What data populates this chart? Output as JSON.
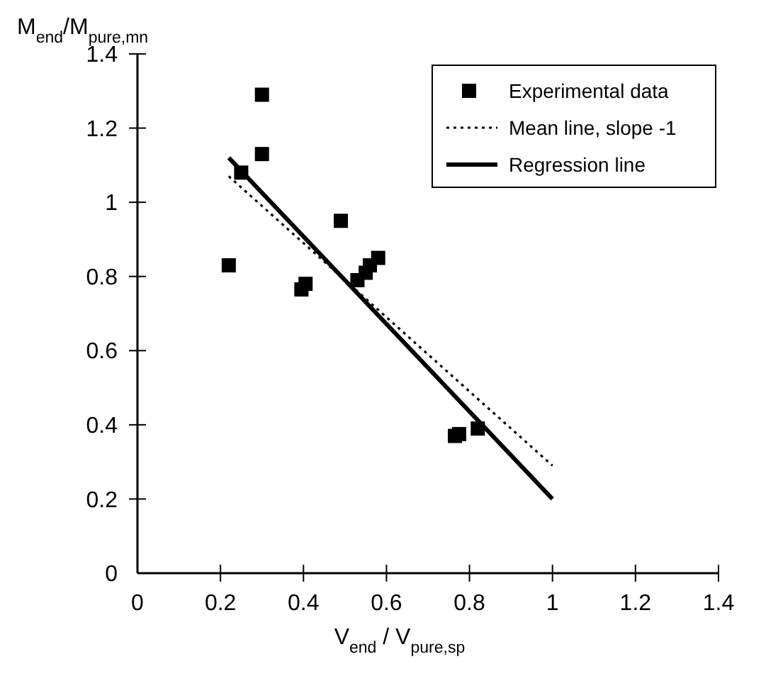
{
  "chart_data": {
    "type": "scatter",
    "xlabel": "V$_{end}$ / V$_{pure,sp}$",
    "ylabel": "M$_{end}$/M$_{pure,mn}$",
    "xlim": [
      0,
      1.4
    ],
    "xticks": [
      0,
      0.2,
      0.4,
      0.6,
      0.8,
      1,
      1.2,
      1.4
    ],
    "ylim": [
      0,
      1.4
    ],
    "yticks": [
      0,
      0.2,
      0.4,
      0.6,
      0.8,
      1,
      1.2,
      1.4
    ],
    "grid": false,
    "legend": "top right",
    "series": [
      {
        "name": "Experimental data",
        "marker": "square",
        "color": "#000000",
        "x": [
          0.22,
          0.25,
          0.3,
          0.3,
          0.49,
          0.395,
          0.405,
          0.53,
          0.55,
          0.56,
          0.58,
          0.765,
          0.775,
          0.82
        ],
        "values": [
          0.83,
          1.08,
          1.29,
          1.13,
          0.95,
          0.765,
          0.78,
          0.79,
          0.81,
          0.83,
          0.85,
          0.37,
          0.375,
          0.39
        ]
      },
      {
        "name": "Mean line, slope -1",
        "type": "line",
        "line_style": "dotted",
        "marker": "none",
        "color": "#000000",
        "x": [
          0.22,
          1
        ],
        "values": [
          1.07,
          0.29
        ]
      },
      {
        "name": "Regression line",
        "type": "line",
        "line_style": "solid",
        "marker": "none",
        "color": "#000000",
        "x": [
          0.22,
          1
        ],
        "values": [
          1.12,
          0.2
        ]
      }
    ]
  }
}
